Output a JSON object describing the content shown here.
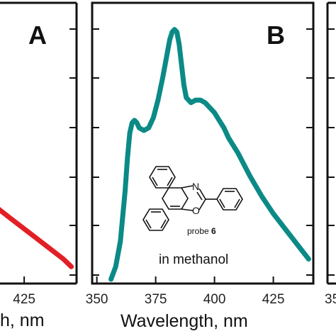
{
  "colors": {
    "panel_a_curve": "#e21f26",
    "panel_b_curve": "#0b8a86",
    "frame": "#111111"
  },
  "chart_data": [
    {
      "panel": "A",
      "type": "line",
      "panel_label": "A",
      "xlabel_visible_fragment": "h, nm",
      "x_ticks": [
        425
      ],
      "x_tick_labels": [
        "425"
      ],
      "xlim": [
        350,
        445
      ],
      "ylim": [
        0,
        1
      ],
      "series": [
        {
          "x": [
            403,
            405,
            410,
            415,
            420,
            425,
            430,
            435,
            440,
            443
          ],
          "y": [
            0.45,
            0.4,
            0.33,
            0.28,
            0.24,
            0.2,
            0.16,
            0.12,
            0.08,
            0.05
          ]
        }
      ]
    },
    {
      "panel": "B",
      "type": "line",
      "panel_label": "B",
      "xlabel": "Wavelength, nm",
      "x_ticks": [
        350,
        375,
        400,
        425
      ],
      "x_tick_labels": [
        "350",
        "375",
        "400",
        "425"
      ],
      "xlim": [
        348,
        442
      ],
      "ylim": [
        0,
        1
      ],
      "grid": false,
      "annotation": "in methanol",
      "molecule_caption_prefix": "probe ",
      "molecule_caption_number": "6",
      "molecule_atoms": [
        "N",
        "O"
      ],
      "series": [
        {
          "x": [
            356,
            358,
            360,
            362,
            363,
            364,
            365,
            366,
            367,
            368,
            370,
            372,
            374,
            376,
            378,
            380,
            381,
            382,
            383,
            384,
            385,
            386,
            387,
            388,
            390,
            392,
            394,
            396,
            398,
            400,
            402,
            404,
            406,
            410,
            415,
            420,
            425,
            430,
            435,
            440
          ],
          "y": [
            0.0,
            0.05,
            0.15,
            0.35,
            0.48,
            0.58,
            0.62,
            0.63,
            0.62,
            0.6,
            0.59,
            0.6,
            0.64,
            0.71,
            0.8,
            0.9,
            0.95,
            0.98,
            0.99,
            0.98,
            0.93,
            0.85,
            0.77,
            0.72,
            0.7,
            0.71,
            0.71,
            0.7,
            0.68,
            0.66,
            0.63,
            0.6,
            0.56,
            0.5,
            0.41,
            0.33,
            0.26,
            0.2,
            0.14,
            0.08
          ]
        }
      ]
    }
  ],
  "panel_c_tick_fragment": "35"
}
